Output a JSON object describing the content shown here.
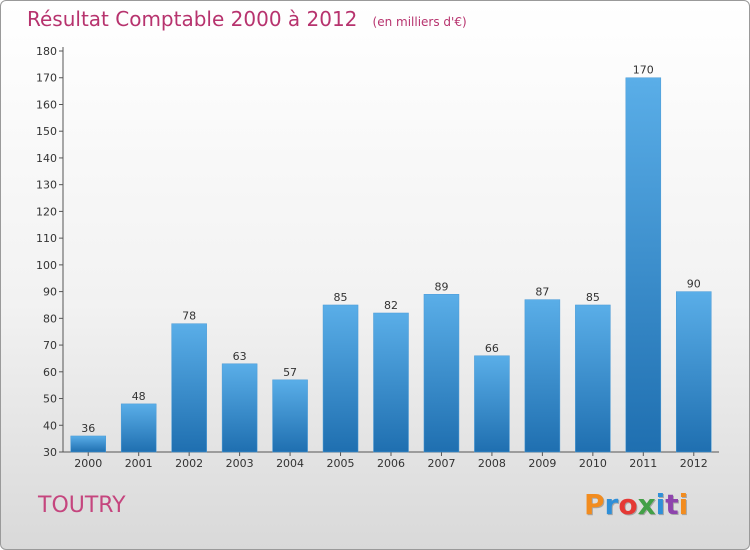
{
  "title": {
    "main": "Résultat Comptable 2000 à 2012",
    "unit": "(en milliers d'€)"
  },
  "commune": "TOUTRY",
  "logo": {
    "text": "Proxiti",
    "colors": [
      "#f28c1f",
      "#2f8fd8",
      "#e53935",
      "#43a047",
      "#2f8fd8",
      "#8e44ad",
      "#f28c1f"
    ]
  },
  "colors": {
    "bar_top": "#5aaee8",
    "bar_bottom": "#1f6fb0",
    "title": "#b7336e"
  },
  "chart_data": {
    "type": "bar",
    "categories": [
      "2000",
      "2001",
      "2002",
      "2003",
      "2004",
      "2005",
      "2006",
      "2007",
      "2008",
      "2009",
      "2010",
      "2011",
      "2012"
    ],
    "values": [
      36,
      48,
      78,
      63,
      57,
      85,
      82,
      89,
      66,
      87,
      85,
      170,
      90
    ],
    "title": "Résultat Comptable 2000 à 2012",
    "xlabel": "",
    "ylabel": "",
    "ylim": [
      30,
      180
    ],
    "yticks": [
      30,
      40,
      50,
      60,
      70,
      80,
      90,
      100,
      110,
      120,
      130,
      140,
      150,
      160,
      170,
      180
    ],
    "grid": false,
    "legend": "none"
  }
}
